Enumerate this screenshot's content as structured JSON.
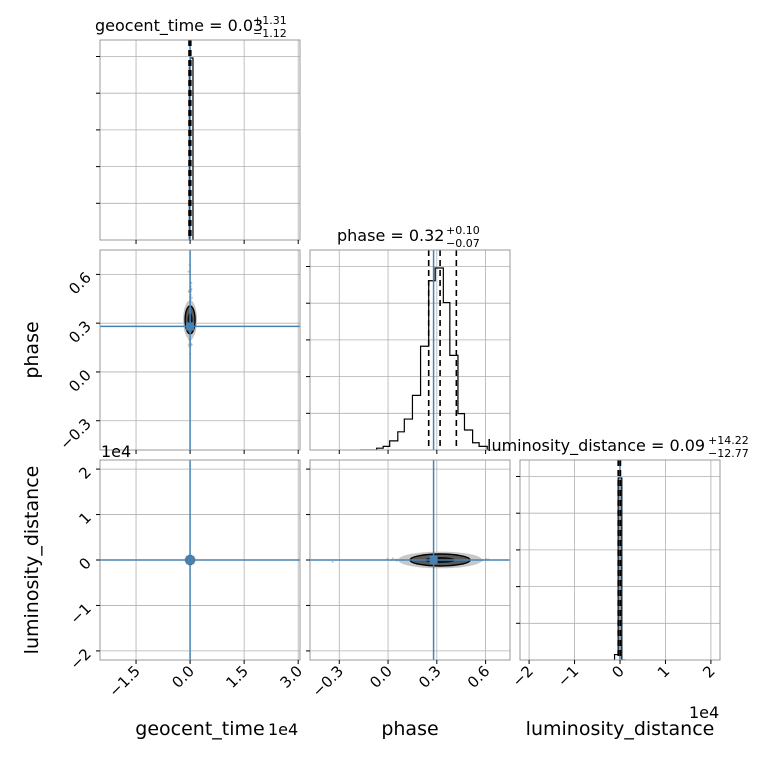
{
  "chart_data": {
    "type": "corner",
    "parameters": [
      "geocent_time",
      "phase",
      "luminosity_distance"
    ],
    "titles": {
      "geocent_time": {
        "label": "geocent_time = 0.03",
        "plus": "+1.31",
        "minus": "−1.12"
      },
      "phase": {
        "label": "phase = 0.32",
        "plus": "+0.10",
        "minus": "−0.07"
      },
      "luminosity_distance": {
        "label": "luminosity_distance = 0.09",
        "plus": "+14.22",
        "minus": "−12.77"
      }
    },
    "axis_labels": {
      "x": [
        "geocent_time",
        "phase",
        "luminosity_distance"
      ],
      "y": [
        "phase",
        "luminosity_distance"
      ]
    },
    "offset_labels": {
      "geocent_time_x": "1e4",
      "luminosity_distance_x": "1e4",
      "luminosity_distance_y": "1e4"
    },
    "axis_ranges": {
      "geocent_time": [
        -2.5,
        3.05
      ],
      "phase": [
        -0.48,
        0.75
      ],
      "luminosity_distance": [
        -2.2,
        2.2
      ]
    },
    "ticks": {
      "geocent_time": {
        "values": [
          -1.5,
          0.0,
          1.5,
          3.0
        ],
        "labels": [
          "−1.5",
          "0.0",
          "1.5",
          "3.0"
        ]
      },
      "phase": {
        "values": [
          -0.3,
          0.0,
          0.3,
          0.6
        ],
        "labels": [
          "−0.3",
          "0.0",
          "0.3",
          "0.6"
        ]
      },
      "luminosity_distance": {
        "values": [
          -2,
          -1,
          0,
          1,
          2
        ],
        "labels": [
          "−2",
          "−1",
          "0",
          "1",
          "2"
        ]
      }
    },
    "truths": {
      "geocent_time": 0.0,
      "phase": 0.28,
      "luminosity_distance": 0.0
    },
    "quantiles": {
      "geocent_time": [
        -0.03,
        0.0,
        0.02
      ],
      "phase": [
        0.25,
        0.32,
        0.42
      ],
      "luminosity_distance": [
        -0.04,
        0.0,
        0.01
      ]
    },
    "histograms": {
      "geocent_time": {
        "edges": [
          -0.02,
          0.0,
          0.08
        ],
        "counts": [
          0.95,
          1.0
        ]
      },
      "phase": {
        "edges": [
          -0.17,
          -0.07,
          -0.03,
          0.01,
          0.06,
          0.1,
          0.15,
          0.2,
          0.25,
          0.29,
          0.34,
          0.38,
          0.43,
          0.47,
          0.52,
          0.56,
          0.61
        ],
        "counts": [
          0.0,
          0.01,
          0.02,
          0.05,
          0.1,
          0.17,
          0.3,
          0.57,
          0.93,
          1.0,
          0.81,
          0.52,
          0.2,
          0.11,
          0.04,
          0.02
        ]
      },
      "luminosity_distance": {
        "edges": [
          -0.12,
          -0.04,
          0.04,
          0.12
        ],
        "counts": [
          0.03,
          1.0,
          0.0
        ]
      }
    },
    "grid": true,
    "truth_color": "#4682b4",
    "line_color": "#000000",
    "grid_color": "#b0b0b0"
  }
}
